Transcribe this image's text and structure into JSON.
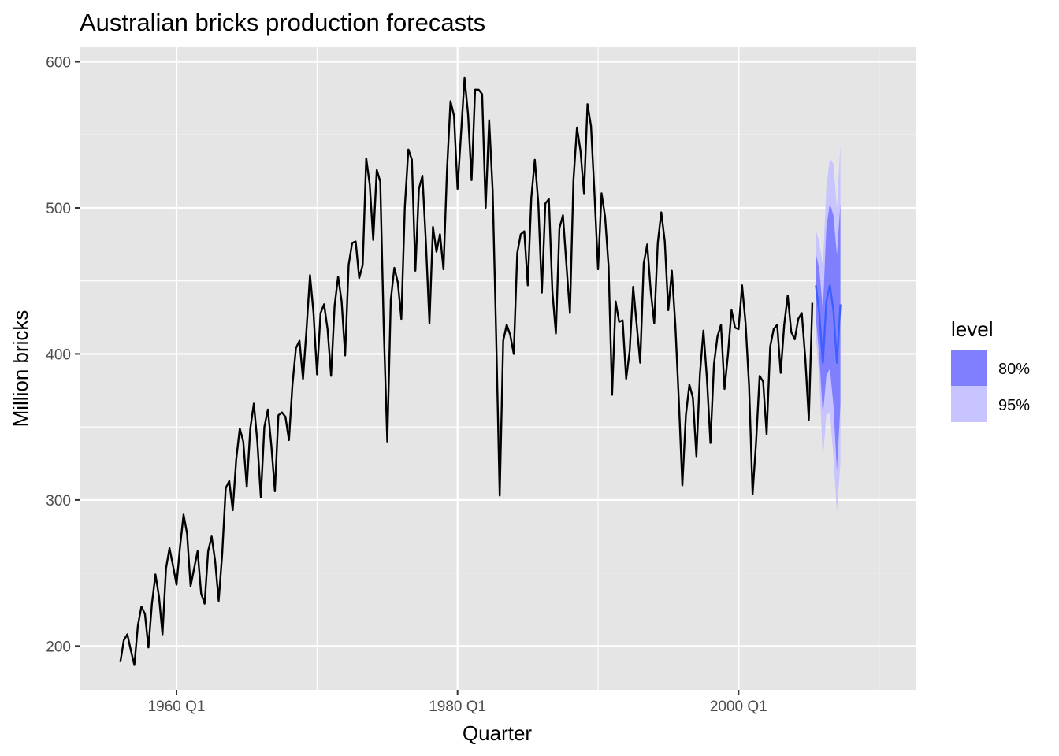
{
  "chart_data": {
    "type": "line",
    "title": "Australian bricks production forecasts",
    "xlabel": "Quarter",
    "ylabel": "Million bricks",
    "xlim": [
      1953.1,
      2012.6
    ],
    "ylim": [
      170,
      610
    ],
    "x_ticks": [
      {
        "value": 1960.0,
        "label": "1960 Q1"
      },
      {
        "value": 1980.0,
        "label": "1980 Q1"
      },
      {
        "value": 2000.0,
        "label": "2000 Q1"
      }
    ],
    "x_minor_ticks": [
      1970.0,
      1990.0,
      2010.0
    ],
    "y_ticks": [
      {
        "value": 200,
        "label": "200"
      },
      {
        "value": 300,
        "label": "300"
      },
      {
        "value": 400,
        "label": "400"
      },
      {
        "value": 500,
        "label": "500"
      },
      {
        "value": 600,
        "label": "600"
      }
    ],
    "y_minor_ticks": [
      250,
      350,
      450,
      550
    ],
    "grid": true,
    "colors": {
      "panel": "#e5e5e5",
      "grid": "#ffffff",
      "history_line": "#000000",
      "forecast_line": "#3d5fff",
      "band_80": "#8080ff",
      "band_95": "#c8c4ff"
    },
    "legend": {
      "title": "level",
      "position": "right",
      "entries": [
        {
          "label": "80%",
          "color": "#8080ff"
        },
        {
          "label": "95%",
          "color": "#c8c4ff"
        }
      ]
    },
    "history": {
      "start_year": 1956,
      "start_quarter": 1,
      "values": [
        189,
        204,
        208,
        197,
        187,
        214,
        227,
        222,
        199,
        229,
        249,
        234,
        208,
        253,
        267,
        255,
        242,
        268,
        290,
        277,
        241,
        253,
        265,
        236,
        229,
        265,
        275,
        258,
        231,
        263,
        308,
        313,
        293,
        328,
        349,
        340,
        309,
        349,
        366,
        340,
        302,
        350,
        362,
        337,
        306,
        358,
        360,
        357,
        341,
        379,
        404,
        409,
        383,
        417,
        454,
        428,
        386,
        428,
        434,
        417,
        385,
        433,
        453,
        436,
        399,
        461,
        476,
        477,
        452,
        461,
        534,
        516,
        478,
        526,
        518,
        417,
        340,
        437,
        459,
        449,
        424,
        501,
        540,
        533,
        457,
        513,
        522,
        476,
        421,
        487,
        470,
        482,
        458,
        526,
        573,
        563,
        513,
        551,
        589,
        564,
        519,
        581,
        581,
        578,
        500,
        560,
        512,
        412,
        303,
        409,
        420,
        413,
        400,
        469,
        482,
        484,
        447,
        507,
        533,
        503,
        442,
        503,
        506,
        443,
        414,
        486,
        495,
        461,
        428,
        519,
        555,
        539,
        510,
        571,
        556,
        509,
        458,
        510,
        494,
        460,
        372,
        436,
        422,
        423,
        383,
        402,
        446,
        420,
        394,
        462,
        475,
        443,
        421,
        476,
        497,
        477,
        430,
        457,
        420,
        368,
        310,
        358,
        379,
        370,
        330,
        386,
        416,
        383,
        339,
        393,
        412,
        420,
        376,
        400,
        430,
        418,
        417,
        447,
        421,
        378,
        304,
        340,
        385,
        381,
        345,
        405,
        417,
        420,
        387,
        420,
        440,
        415,
        410,
        424,
        428,
        397,
        355,
        435
      ]
    },
    "forecast": {
      "start_year": 2005,
      "start_quarter": 3,
      "mean": [
        447,
        428,
        394,
        436,
        447,
        430,
        394,
        434
      ],
      "lo80": [
        425,
        398,
        358,
        385,
        390,
        365,
        320,
        365
      ],
      "hi80": [
        469,
        458,
        430,
        487,
        503,
        495,
        468,
        503
      ],
      "lo95": [
        413,
        382,
        328,
        358,
        360,
        330,
        292,
        325
      ],
      "hi95": [
        485,
        476,
        460,
        514,
        534,
        530,
        500,
        543
      ]
    }
  }
}
